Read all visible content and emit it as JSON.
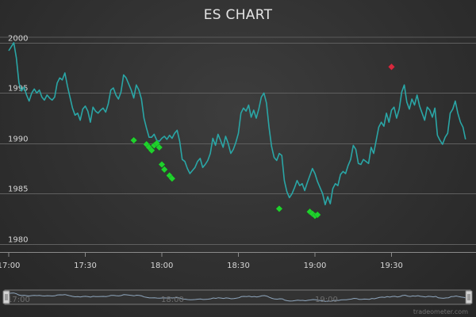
{
  "chart_data": {
    "type": "line",
    "title": "ES CHART",
    "xlabel": "",
    "ylabel": "",
    "x_tick_labels": [
      "17:00",
      "17:30",
      "18:00",
      "18:30",
      "19:00",
      "19:30"
    ],
    "y_tick_labels": [
      "1980",
      "1985",
      "1990",
      "1995",
      "2000"
    ],
    "xlim": [
      "17:00",
      "19:59"
    ],
    "ylim": [
      1979.2,
      2000.7
    ],
    "grid": "horizontal",
    "legend": "none",
    "series": [
      {
        "kind": "price",
        "color": "#2aa6a6",
        "points": [
          [
            "17:00",
            1999.2
          ],
          [
            "17:01",
            1999.6
          ],
          [
            "17:02",
            2000.0
          ],
          [
            "17:03",
            1998.5
          ],
          [
            "17:04",
            1996.0
          ],
          [
            "17:05",
            1995.2
          ],
          [
            "17:06",
            1995.6
          ],
          [
            "17:07",
            1994.8
          ],
          [
            "17:08",
            1994.2
          ],
          [
            "17:09",
            1995.0
          ],
          [
            "17:10",
            1995.4
          ],
          [
            "17:11",
            1995.0
          ],
          [
            "17:12",
            1995.3
          ],
          [
            "17:13",
            1994.6
          ],
          [
            "17:14",
            1994.3
          ],
          [
            "17:15",
            1994.8
          ],
          [
            "17:16",
            1994.5
          ],
          [
            "17:17",
            1994.3
          ],
          [
            "17:18",
            1994.6
          ],
          [
            "17:19",
            1996.0
          ],
          [
            "17:20",
            1996.5
          ],
          [
            "17:21",
            1996.3
          ],
          [
            "17:22",
            1997.0
          ],
          [
            "17:23",
            1995.7
          ],
          [
            "17:24",
            1994.6
          ],
          [
            "17:25",
            1993.5
          ],
          [
            "17:26",
            1992.8
          ],
          [
            "17:27",
            1993.0
          ],
          [
            "17:28",
            1992.3
          ],
          [
            "17:29",
            1993.4
          ],
          [
            "17:30",
            1993.7
          ],
          [
            "17:31",
            1993.2
          ],
          [
            "17:32",
            1992.1
          ],
          [
            "17:33",
            1993.6
          ],
          [
            "17:34",
            1993.2
          ],
          [
            "17:35",
            1993.0
          ],
          [
            "17:36",
            1993.3
          ],
          [
            "17:37",
            1993.5
          ],
          [
            "17:38",
            1993.1
          ],
          [
            "17:39",
            1993.9
          ],
          [
            "17:40",
            1995.3
          ],
          [
            "17:41",
            1995.5
          ],
          [
            "17:42",
            1994.8
          ],
          [
            "17:43",
            1994.4
          ],
          [
            "17:44",
            1995.1
          ],
          [
            "17:45",
            1996.8
          ],
          [
            "17:46",
            1996.5
          ],
          [
            "17:47",
            1995.9
          ],
          [
            "17:48",
            1995.3
          ],
          [
            "17:49",
            1994.5
          ],
          [
            "17:50",
            1995.8
          ],
          [
            "17:51",
            1995.3
          ],
          [
            "17:52",
            1994.4
          ],
          [
            "17:53",
            1992.5
          ],
          [
            "17:54",
            1991.5
          ],
          [
            "17:55",
            1990.6
          ],
          [
            "17:56",
            1990.6
          ],
          [
            "17:57",
            1990.9
          ],
          [
            "17:58",
            1990.3
          ],
          [
            "17:59",
            1990.2
          ],
          [
            "18:00",
            1990.5
          ],
          [
            "18:01",
            1990.7
          ],
          [
            "18:02",
            1990.4
          ],
          [
            "18:03",
            1990.8
          ],
          [
            "18:04",
            1990.5
          ],
          [
            "18:05",
            1991.0
          ],
          [
            "18:06",
            1991.3
          ],
          [
            "18:07",
            1990.2
          ],
          [
            "18:08",
            1988.4
          ],
          [
            "18:09",
            1988.2
          ],
          [
            "18:10",
            1987.5
          ],
          [
            "18:11",
            1987.0
          ],
          [
            "18:12",
            1987.3
          ],
          [
            "18:13",
            1987.6
          ],
          [
            "18:14",
            1988.2
          ],
          [
            "18:15",
            1988.5
          ],
          [
            "18:16",
            1987.6
          ],
          [
            "18:17",
            1987.9
          ],
          [
            "18:18",
            1988.3
          ],
          [
            "18:19",
            1989.0
          ],
          [
            "18:20",
            1990.5
          ],
          [
            "18:21",
            1989.8
          ],
          [
            "18:22",
            1990.9
          ],
          [
            "18:23",
            1990.3
          ],
          [
            "18:24",
            1989.6
          ],
          [
            "18:25",
            1990.7
          ],
          [
            "18:26",
            1990.0
          ],
          [
            "18:27",
            1989.0
          ],
          [
            "18:28",
            1989.4
          ],
          [
            "18:29",
            1990.1
          ],
          [
            "18:30",
            1991.0
          ],
          [
            "18:31",
            1993.0
          ],
          [
            "18:32",
            1993.5
          ],
          [
            "18:33",
            1993.2
          ],
          [
            "18:34",
            1993.8
          ],
          [
            "18:35",
            1992.6
          ],
          [
            "18:36",
            1993.3
          ],
          [
            "18:37",
            1992.5
          ],
          [
            "18:38",
            1993.4
          ],
          [
            "18:39",
            1994.6
          ],
          [
            "18:40",
            1995.0
          ],
          [
            "18:41",
            1994.0
          ],
          [
            "18:42",
            1991.6
          ],
          [
            "18:43",
            1989.7
          ],
          [
            "18:44",
            1988.6
          ],
          [
            "18:45",
            1988.3
          ],
          [
            "18:46",
            1989.0
          ],
          [
            "18:47",
            1988.8
          ],
          [
            "18:48",
            1986.3
          ],
          [
            "18:49",
            1985.2
          ],
          [
            "18:50",
            1984.6
          ],
          [
            "18:51",
            1985.0
          ],
          [
            "18:52",
            1985.6
          ],
          [
            "18:53",
            1986.3
          ],
          [
            "18:54",
            1985.8
          ],
          [
            "18:55",
            1986.0
          ],
          [
            "18:56",
            1985.3
          ],
          [
            "18:57",
            1986.1
          ],
          [
            "18:58",
            1986.8
          ],
          [
            "18:59",
            1987.5
          ],
          [
            "19:00",
            1987.0
          ],
          [
            "19:01",
            1986.2
          ],
          [
            "19:02",
            1985.6
          ],
          [
            "19:03",
            1985.0
          ],
          [
            "19:04",
            1983.9
          ],
          [
            "19:05",
            1984.7
          ],
          [
            "19:06",
            1984.0
          ],
          [
            "19:07",
            1985.5
          ],
          [
            "19:08",
            1986.0
          ],
          [
            "19:09",
            1985.8
          ],
          [
            "19:10",
            1986.9
          ],
          [
            "19:11",
            1987.2
          ],
          [
            "19:12",
            1987.0
          ],
          [
            "19:13",
            1987.8
          ],
          [
            "19:14",
            1988.4
          ],
          [
            "19:15",
            1989.8
          ],
          [
            "19:16",
            1989.4
          ],
          [
            "19:17",
            1988.0
          ],
          [
            "19:18",
            1987.9
          ],
          [
            "19:19",
            1988.4
          ],
          [
            "19:20",
            1988.2
          ],
          [
            "19:21",
            1988.0
          ],
          [
            "19:22",
            1989.6
          ],
          [
            "19:23",
            1989.0
          ],
          [
            "19:24",
            1990.3
          ],
          [
            "19:25",
            1991.6
          ],
          [
            "19:26",
            1992.1
          ],
          [
            "19:27",
            1991.7
          ],
          [
            "19:28",
            1993.0
          ],
          [
            "19:29",
            1992.1
          ],
          [
            "19:30",
            1993.3
          ],
          [
            "19:31",
            1993.6
          ],
          [
            "19:32",
            1992.5
          ],
          [
            "19:33",
            1993.4
          ],
          [
            "19:34",
            1995.1
          ],
          [
            "19:35",
            1995.8
          ],
          [
            "19:36",
            1994.1
          ],
          [
            "19:37",
            1993.4
          ],
          [
            "19:38",
            1994.4
          ],
          [
            "19:39",
            1993.8
          ],
          [
            "19:40",
            1994.8
          ],
          [
            "19:41",
            1993.7
          ],
          [
            "19:42",
            1993.0
          ],
          [
            "19:43",
            1992.3
          ],
          [
            "19:44",
            1993.6
          ],
          [
            "19:45",
            1993.3
          ],
          [
            "19:46",
            1992.6
          ],
          [
            "19:47",
            1993.5
          ],
          [
            "19:48",
            1990.8
          ],
          [
            "19:49",
            1990.3
          ],
          [
            "19:50",
            1989.9
          ],
          [
            "19:51",
            1990.6
          ],
          [
            "19:52",
            1991.0
          ],
          [
            "19:53",
            1993.0
          ],
          [
            "19:54",
            1993.4
          ],
          [
            "19:55",
            1994.2
          ],
          [
            "19:56",
            1993.0
          ],
          [
            "19:57",
            1992.1
          ],
          [
            "19:58",
            1991.6
          ],
          [
            "19:59",
            1990.4
          ]
        ]
      },
      {
        "kind": "markers",
        "color": "#1fd12c",
        "points": [
          [
            "17:49",
            1990.3
          ],
          [
            "17:54",
            1989.9
          ],
          [
            "17:55",
            1989.6
          ],
          [
            "17:56",
            1989.3
          ],
          [
            "17:57",
            1989.8
          ],
          [
            "17:58",
            1990.0
          ],
          [
            "17:59",
            1989.6
          ],
          [
            "18:00",
            1987.9
          ],
          [
            "18:01",
            1987.4
          ],
          [
            "18:03",
            1986.8
          ],
          [
            "18:04",
            1986.5
          ],
          [
            "18:46",
            1983.5
          ],
          [
            "18:58",
            1983.2
          ],
          [
            "18:59",
            1983.0
          ],
          [
            "19:00",
            1982.8
          ],
          [
            "19:01",
            1982.9
          ]
        ]
      },
      {
        "kind": "markers",
        "color": "#d8293e",
        "points": [
          [
            "19:30",
            1997.6
          ]
        ]
      }
    ]
  },
  "navigator": {
    "labels": [
      "17:00",
      "18:00",
      "19:00"
    ]
  },
  "credit": "tradeometer.com"
}
